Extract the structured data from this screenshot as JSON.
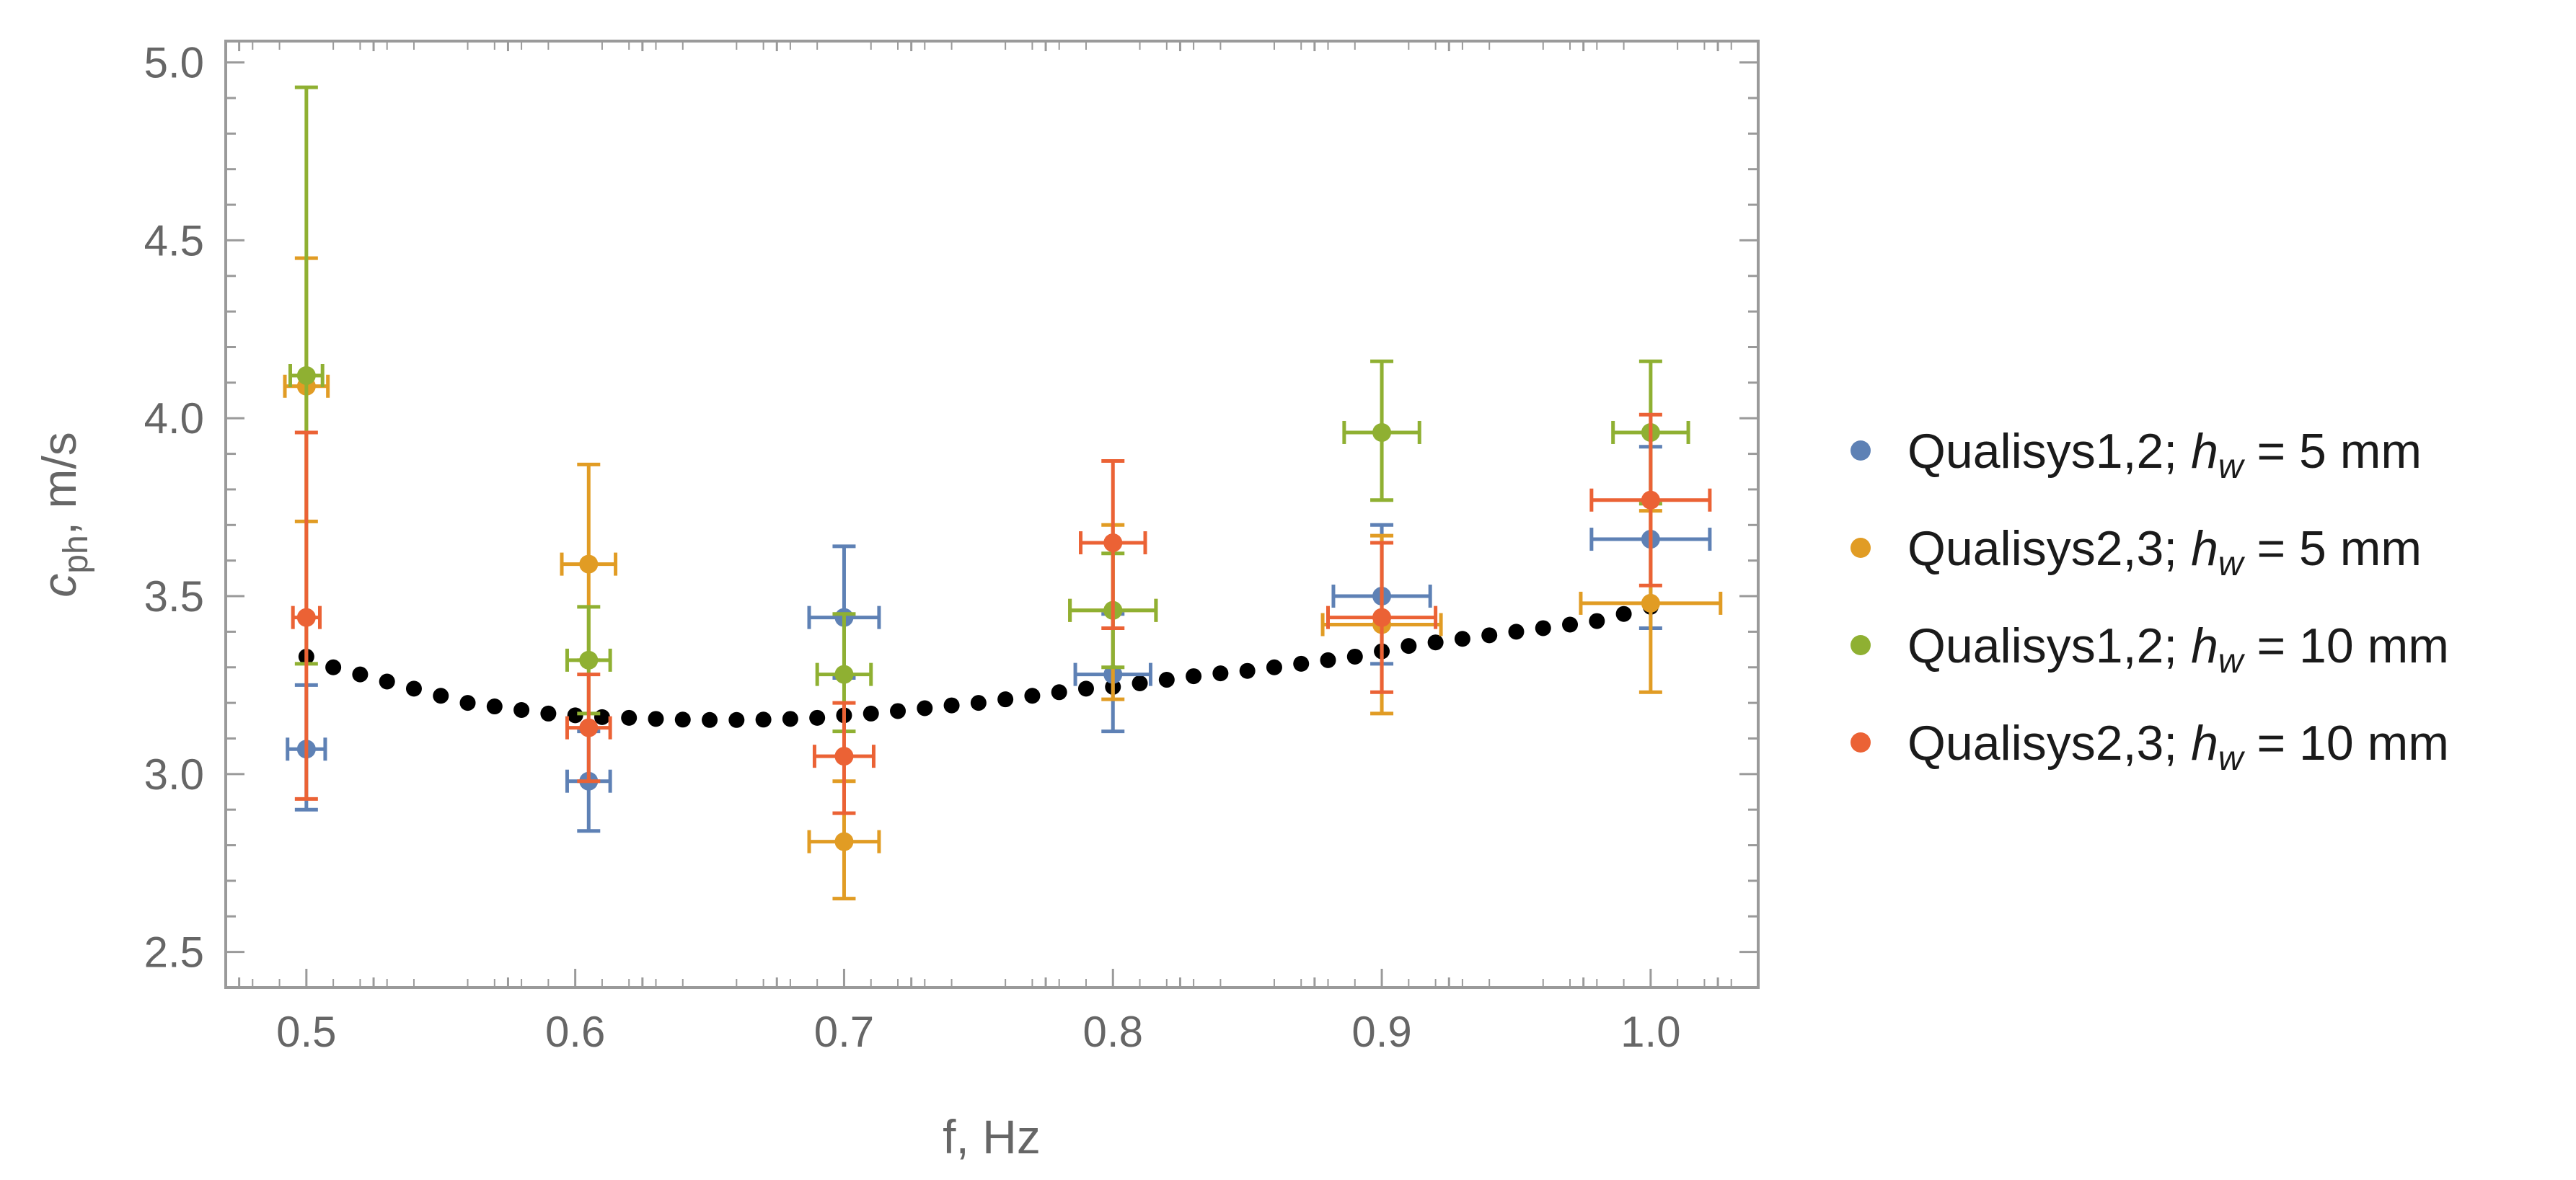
{
  "chart_data": {
    "type": "scatter",
    "title": "",
    "xlabel": "f, Hz",
    "ylabel_main": "c",
    "ylabel_sub": "ph",
    "ylabel_tail": ", m/s",
    "xlim": [
      0.47,
      1.04
    ],
    "ylim": [
      2.4,
      5.06
    ],
    "xticks": [
      0.5,
      0.6,
      0.7,
      0.8,
      0.9,
      1.0
    ],
    "xtick_labels": [
      "0.5",
      "0.6",
      "0.7",
      "0.8",
      "0.9",
      "1.0"
    ],
    "yticks": [
      2.5,
      3.0,
      3.5,
      4.0,
      4.5,
      5.0
    ],
    "ytick_labels": [
      "2.5",
      "3.0",
      "3.5",
      "4.0",
      "4.5",
      "5.0"
    ],
    "legend_position": "right",
    "series": [
      {
        "name": "Qualisys1,2; h_w = 5 mm",
        "legend_prefix": "Qualisys1,2; ",
        "legend_h": "h",
        "legend_w": "w",
        "legend_suffix": " = 5 mm",
        "color": "#5E81B5",
        "points": [
          {
            "x": 0.5,
            "y": 3.07,
            "yerr_low": 2.9,
            "yerr_high": 3.25,
            "xerr": 0.007
          },
          {
            "x": 0.605,
            "y": 2.98,
            "yerr_low": 2.84,
            "yerr_high": 3.12,
            "xerr": 0.008
          },
          {
            "x": 0.7,
            "y": 3.44,
            "yerr_low": 3.27,
            "yerr_high": 3.64,
            "xerr": 0.013
          },
          {
            "x": 0.8,
            "y": 3.28,
            "yerr_low": 3.12,
            "yerr_high": 3.45,
            "xerr": 0.014
          },
          {
            "x": 0.9,
            "y": 3.5,
            "yerr_low": 3.31,
            "yerr_high": 3.7,
            "xerr": 0.018
          },
          {
            "x": 1.0,
            "y": 3.66,
            "yerr_low": 3.41,
            "yerr_high": 3.92,
            "xerr": 0.022
          }
        ]
      },
      {
        "name": "Qualisys2,3; h_w = 5 mm",
        "legend_prefix": "Qualisys2,3; ",
        "legend_h": "h",
        "legend_w": "w",
        "legend_suffix": " = 5 mm",
        "color": "#E19C24",
        "points": [
          {
            "x": 0.5,
            "y": 4.09,
            "yerr_low": 3.71,
            "yerr_high": 4.45,
            "xerr": 0.008
          },
          {
            "x": 0.605,
            "y": 3.59,
            "yerr_low": 3.32,
            "yerr_high": 3.87,
            "xerr": 0.01
          },
          {
            "x": 0.7,
            "y": 2.81,
            "yerr_low": 2.65,
            "yerr_high": 2.98,
            "xerr": 0.013
          },
          {
            "x": 0.8,
            "y": 3.46,
            "yerr_low": 3.21,
            "yerr_high": 3.7,
            "xerr": 0.016
          },
          {
            "x": 0.9,
            "y": 3.42,
            "yerr_low": 3.17,
            "yerr_high": 3.67,
            "xerr": 0.022
          },
          {
            "x": 1.0,
            "y": 3.48,
            "yerr_low": 3.23,
            "yerr_high": 3.74,
            "xerr": 0.026
          }
        ]
      },
      {
        "name": "Qualisys1,2; h_w = 10 mm",
        "legend_prefix": "Qualisys1,2; ",
        "legend_h": "h",
        "legend_w": "w",
        "legend_suffix": " = 10 mm",
        "color": "#8FB032",
        "points": [
          {
            "x": 0.5,
            "y": 4.12,
            "yerr_low": 3.31,
            "yerr_high": 4.93,
            "xerr": 0.006
          },
          {
            "x": 0.605,
            "y": 3.32,
            "yerr_low": 3.17,
            "yerr_high": 3.47,
            "xerr": 0.008
          },
          {
            "x": 0.7,
            "y": 3.28,
            "yerr_low": 3.12,
            "yerr_high": 3.45,
            "xerr": 0.01
          },
          {
            "x": 0.8,
            "y": 3.46,
            "yerr_low": 3.3,
            "yerr_high": 3.62,
            "xerr": 0.016
          },
          {
            "x": 0.9,
            "y": 3.96,
            "yerr_low": 3.77,
            "yerr_high": 4.16,
            "xerr": 0.014
          },
          {
            "x": 1.0,
            "y": 3.96,
            "yerr_low": 3.76,
            "yerr_high": 4.16,
            "xerr": 0.014
          }
        ]
      },
      {
        "name": "Qualisys2,3; h_w = 10 mm",
        "legend_prefix": "Qualisys2,3; ",
        "legend_h": "h",
        "legend_w": "w",
        "legend_suffix": " = 10 mm",
        "color": "#EB6235",
        "points": [
          {
            "x": 0.5,
            "y": 3.44,
            "yerr_low": 2.93,
            "yerr_high": 3.96,
            "xerr": 0.005
          },
          {
            "x": 0.605,
            "y": 3.13,
            "yerr_low": 2.98,
            "yerr_high": 3.28,
            "xerr": 0.008
          },
          {
            "x": 0.7,
            "y": 3.05,
            "yerr_low": 2.89,
            "yerr_high": 3.2,
            "xerr": 0.011
          },
          {
            "x": 0.8,
            "y": 3.65,
            "yerr_low": 3.41,
            "yerr_high": 3.88,
            "xerr": 0.012
          },
          {
            "x": 0.9,
            "y": 3.44,
            "yerr_low": 3.23,
            "yerr_high": 3.65,
            "xerr": 0.02
          },
          {
            "x": 1.0,
            "y": 3.77,
            "yerr_low": 3.53,
            "yerr_high": 4.01,
            "xerr": 0.022
          }
        ]
      }
    ],
    "model_curve": {
      "name": "model",
      "color": "#000000",
      "x": [
        0.5,
        0.51,
        0.52,
        0.53,
        0.54,
        0.55,
        0.56,
        0.57,
        0.58,
        0.59,
        0.6,
        0.61,
        0.62,
        0.63,
        0.64,
        0.65,
        0.66,
        0.67,
        0.68,
        0.69,
        0.7,
        0.71,
        0.72,
        0.73,
        0.74,
        0.75,
        0.76,
        0.77,
        0.78,
        0.79,
        0.8,
        0.81,
        0.82,
        0.83,
        0.84,
        0.85,
        0.86,
        0.87,
        0.88,
        0.89,
        0.9,
        0.91,
        0.92,
        0.93,
        0.94,
        0.95,
        0.96,
        0.97,
        0.98,
        0.99,
        1.0
      ],
      "y": [
        3.33,
        3.3,
        3.28,
        3.26,
        3.24,
        3.22,
        3.2,
        3.19,
        3.18,
        3.17,
        3.165,
        3.16,
        3.158,
        3.155,
        3.153,
        3.152,
        3.152,
        3.153,
        3.155,
        3.158,
        3.165,
        3.17,
        3.177,
        3.185,
        3.193,
        3.2,
        3.21,
        3.22,
        3.23,
        3.24,
        3.245,
        3.255,
        3.265,
        3.275,
        3.283,
        3.29,
        3.3,
        3.31,
        3.32,
        3.33,
        3.345,
        3.36,
        3.37,
        3.38,
        3.39,
        3.4,
        3.41,
        3.42,
        3.43,
        3.45,
        3.47
      ]
    }
  }
}
